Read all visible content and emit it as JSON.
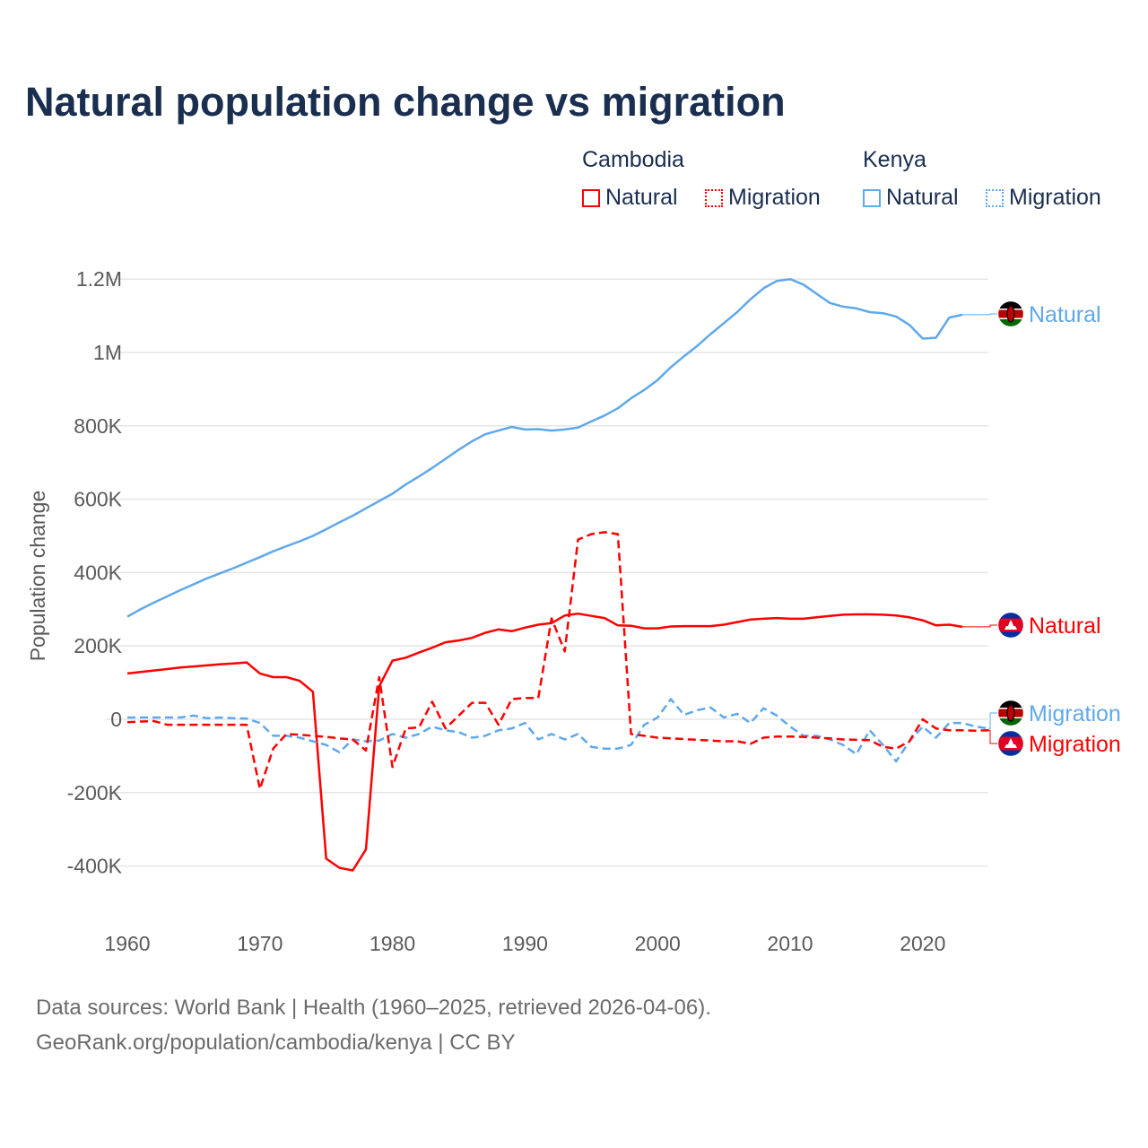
{
  "title": "Natural population change vs migration",
  "legend": {
    "groups": [
      {
        "name": "Cambodia",
        "items": [
          {
            "label": "Natural",
            "style": "solid"
          },
          {
            "label": "Migration",
            "style": "dotted"
          }
        ],
        "color": "#ff0000"
      },
      {
        "name": "Kenya",
        "items": [
          {
            "label": "Natural",
            "style": "solid"
          },
          {
            "label": "Migration",
            "style": "dotted"
          }
        ],
        "color": "#5fa8ec"
      }
    ]
  },
  "footer": {
    "line1": "Data sources: World Bank | Health (1960–2025, retrieved 2026-04-06).",
    "line2": "GeoRank.org/population/cambodia/kenya | CC BY"
  },
  "chart_data": {
    "type": "line",
    "title": "Natural population change vs migration",
    "xlabel": "",
    "ylabel": "Population change",
    "xlim": [
      1960,
      2025
    ],
    "ylim": [
      -500000,
      1250000
    ],
    "x_ticks": [
      1960,
      1970,
      1980,
      1990,
      2000,
      2010,
      2020
    ],
    "x_tick_labels": [
      "1960",
      "1970",
      "1980",
      "1990",
      "2000",
      "2010",
      "2020"
    ],
    "y_ticks": [
      -400000,
      -200000,
      0,
      200000,
      400000,
      600000,
      800000,
      1000000,
      1200000
    ],
    "y_tick_labels": [
      "-400K",
      "-200K",
      "0",
      "200K",
      "400K",
      "600K",
      "800K",
      "1M",
      "1.2M"
    ],
    "grid": true,
    "legend_position": "top-right",
    "series": [
      {
        "name": "Kenya Natural",
        "end_label": "Natural",
        "country": "Kenya",
        "color": "#5fa8ec",
        "dash": false,
        "start_year": 1960,
        "values": [
          280000,
          300000,
          318000,
          335000,
          352000,
          368000,
          384000,
          398000,
          412000,
          427000,
          442000,
          458000,
          472000,
          485000,
          500000,
          518000,
          537000,
          555000,
          575000,
          595000,
          615000,
          640000,
          662000,
          685000,
          710000,
          735000,
          758000,
          777000,
          787000,
          797000,
          790000,
          791000,
          787000,
          790000,
          795000,
          812000,
          828000,
          848000,
          875000,
          898000,
          925000,
          960000,
          990000,
          1018000,
          1050000,
          1080000,
          1110000,
          1145000,
          1175000,
          1195000,
          1200000,
          1185000,
          1160000,
          1135000,
          1125000,
          1120000,
          1110000,
          1107000,
          1098000,
          1075000,
          1038000,
          1040000,
          1095000,
          1103000
        ]
      },
      {
        "name": "Cambodia Natural",
        "end_label": "Natural",
        "country": "Cambodia",
        "color": "#ff0000",
        "dash": false,
        "start_year": 1960,
        "values": [
          125000,
          129000,
          133000,
          137000,
          141000,
          144000,
          147000,
          150000,
          152000,
          155000,
          125000,
          115000,
          115000,
          105000,
          75000,
          -380000,
          -405000,
          -412000,
          -355000,
          90000,
          160000,
          168000,
          182000,
          195000,
          210000,
          215000,
          222000,
          236000,
          245000,
          240000,
          250000,
          258000,
          262000,
          283000,
          288000,
          282000,
          276000,
          256000,
          255000,
          248000,
          248000,
          253000,
          254000,
          254000,
          254000,
          258000,
          265000,
          272000,
          274000,
          276000,
          274000,
          274000,
          278000,
          282000,
          285000,
          286000,
          286000,
          285000,
          283000,
          278000,
          270000,
          256000,
          258000,
          252000
        ]
      },
      {
        "name": "Kenya Migration",
        "end_label": "Migration",
        "country": "Kenya",
        "color": "#5fa8ec",
        "dash": true,
        "start_year": 1960,
        "values": [
          5000,
          5000,
          5000,
          5000,
          5000,
          10000,
          3000,
          5000,
          3000,
          2000,
          -10000,
          -45000,
          -45000,
          -50000,
          -60000,
          -70000,
          -90000,
          -55000,
          -60000,
          -58000,
          -40000,
          -50000,
          -40000,
          -20000,
          -30000,
          -35000,
          -50000,
          -45000,
          -30000,
          -25000,
          -10000,
          -55000,
          -40000,
          -55000,
          -40000,
          -75000,
          -80000,
          -80000,
          -70000,
          -15000,
          5000,
          55000,
          12000,
          25000,
          32000,
          5000,
          15000,
          -10000,
          30000,
          10000,
          -20000,
          -45000,
          -45000,
          -55000,
          -70000,
          -95000,
          -30000,
          -70000,
          -115000,
          -60000,
          -20000,
          -50000,
          -10000,
          -10000,
          -20000,
          -25000
        ]
      },
      {
        "name": "Cambodia Migration",
        "end_label": "Migration",
        "country": "Cambodia",
        "color": "#ff0000",
        "dash": true,
        "start_year": 1960,
        "values": [
          -8000,
          -6000,
          -5000,
          -15000,
          -15000,
          -15000,
          -15000,
          -15000,
          -15000,
          -15000,
          -190000,
          -80000,
          -40000,
          -42000,
          -45000,
          -48000,
          -52000,
          -55000,
          -85000,
          115000,
          -130000,
          -25000,
          -22000,
          48000,
          -25000,
          10000,
          45000,
          45000,
          -15000,
          55000,
          58000,
          58000,
          275000,
          185000,
          490000,
          505000,
          510000,
          505000,
          -40000,
          -45000,
          -50000,
          -52000,
          -54000,
          -56000,
          -58000,
          -60000,
          -60000,
          -67000,
          -50000,
          -47000,
          -47000,
          -48000,
          -50000,
          -52000,
          -55000,
          -56000,
          -57000,
          -75000,
          -80000,
          -60000,
          0,
          -25000,
          -30000,
          -30000,
          -31000,
          -30000
        ]
      }
    ]
  }
}
